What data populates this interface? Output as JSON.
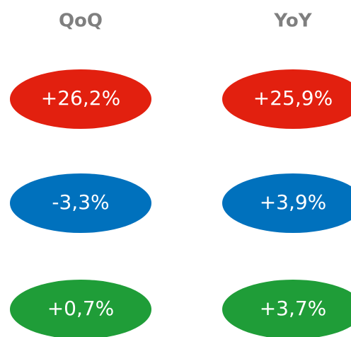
{
  "columns": [
    {
      "header": "QoQ",
      "cells": [
        "+26,2%",
        "-3,3%",
        "+0,7%"
      ]
    },
    {
      "header": "YoY",
      "cells": [
        "+25,9%",
        "+3,9%",
        "+3,7%"
      ]
    }
  ],
  "row_colors": [
    "#e2200f",
    "#0071bd",
    "#1f9d38"
  ]
}
